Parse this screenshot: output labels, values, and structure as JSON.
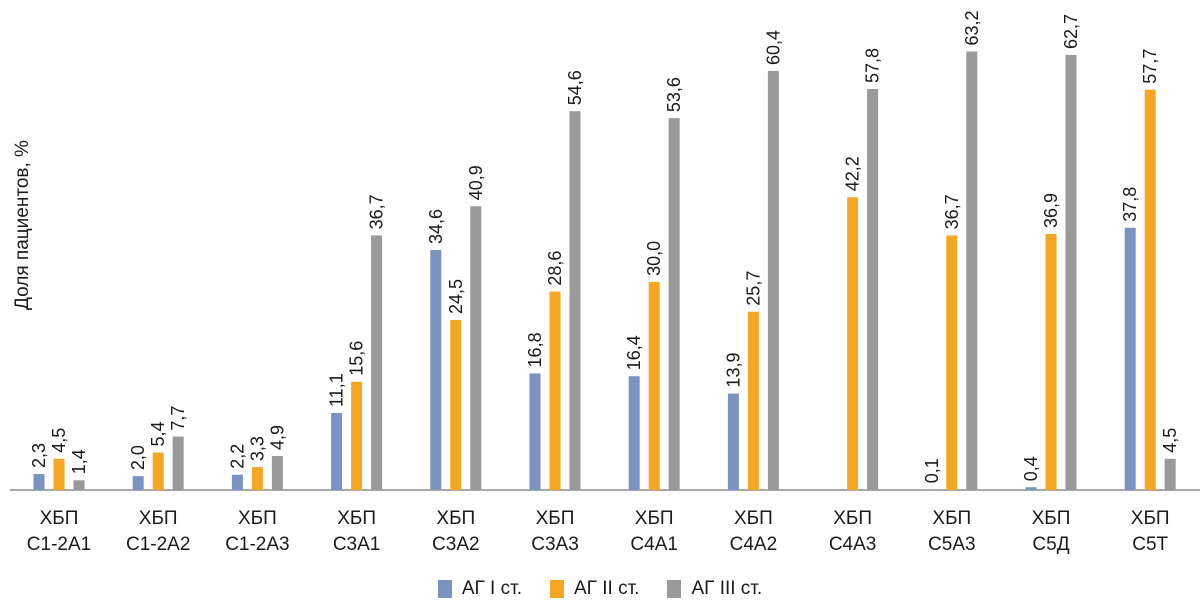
{
  "chart_data": {
    "type": "bar",
    "ylabel": "Доля пациентов, %",
    "categories": [
      [
        "ХБП",
        "С1-2А1"
      ],
      [
        "ХБП",
        "С1-2А2"
      ],
      [
        "ХБП",
        "С1-2А3"
      ],
      [
        "ХБП",
        "С3А1"
      ],
      [
        "ХБП",
        "С3А2"
      ],
      [
        "ХБП",
        "С3А3"
      ],
      [
        "ХБП",
        "С4А1"
      ],
      [
        "ХБП",
        "С4А2"
      ],
      [
        "ХБП",
        "С4А3"
      ],
      [
        "ХБП",
        "С5А3"
      ],
      [
        "ХБП",
        "С5Д"
      ],
      [
        "ХБП",
        "С5Т"
      ]
    ],
    "series": [
      {
        "name": "АГ I ст.",
        "color": "#7b93c0",
        "values": [
          2.3,
          2.0,
          2.2,
          11.1,
          34.6,
          16.8,
          16.4,
          13.9,
          null,
          0.1,
          0.4,
          37.8
        ],
        "labels": [
          "2,3",
          "2,0",
          "2,2",
          "11,1",
          "34,6",
          "16,8",
          "16,4",
          "13,9",
          "",
          "0,1",
          "0,4",
          "37,8"
        ]
      },
      {
        "name": "АГ II ст.",
        "color": "#f5a623",
        "values": [
          4.5,
          5.4,
          3.3,
          15.6,
          24.5,
          28.6,
          30.0,
          25.7,
          42.2,
          36.7,
          36.9,
          57.7
        ],
        "labels": [
          "4,5",
          "5,4",
          "3,3",
          "15,6",
          "24,5",
          "28,6",
          "30,0",
          "25,7",
          "42,2",
          "36,7",
          "36,9",
          "57,7"
        ]
      },
      {
        "name": "АГ III ст.",
        "color": "#9a9a9c",
        "values": [
          1.4,
          7.7,
          4.9,
          36.7,
          40.9,
          54.6,
          53.6,
          60.4,
          57.8,
          63.2,
          62.7,
          4.5
        ],
        "labels": [
          "1,4",
          "7,7",
          "4,9",
          "36,7",
          "40,9",
          "54,6",
          "53,6",
          "60,4",
          "57,8",
          "63,2",
          "62,7",
          "4,5"
        ]
      }
    ],
    "ylim": [
      0,
      64
    ],
    "grid": false,
    "legend_position": "bottom"
  }
}
